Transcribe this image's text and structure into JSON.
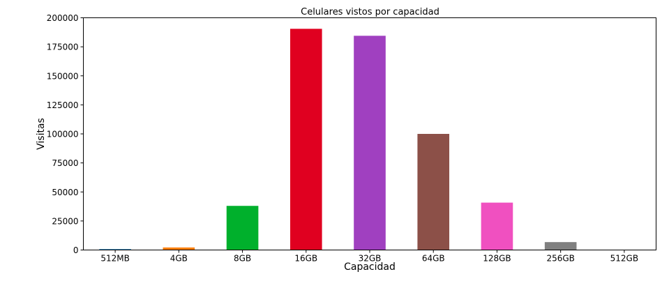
{
  "chart_data": {
    "type": "bar",
    "title": "Celulares vistos por capacidad",
    "xlabel": "Capacidad",
    "ylabel": "Visitas",
    "categories": [
      "512MB",
      "4GB",
      "8GB",
      "16GB",
      "32GB",
      "64GB",
      "128GB",
      "256GB",
      "512GB"
    ],
    "values": [
      800,
      2200,
      38000,
      190500,
      184500,
      100000,
      40800,
      6800,
      200
    ],
    "colors": [
      "#1f77b4",
      "#ff7f0e",
      "#00b02c",
      "#e00020",
      "#a040c0",
      "#8c5048",
      "#f050c0",
      "#808080",
      "#1f77b4"
    ],
    "ylim": [
      0,
      200000
    ],
    "yticks": [
      0,
      25000,
      50000,
      75000,
      100000,
      125000,
      150000,
      175000,
      200000
    ],
    "ytick_labels": [
      "0",
      "25000",
      "50000",
      "75000",
      "100000",
      "125000",
      "150000",
      "175000",
      "200000"
    ],
    "grid": false,
    "legend": "none"
  }
}
